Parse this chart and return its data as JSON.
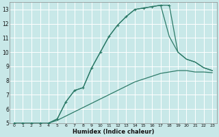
{
  "xlabel": "Humidex (Indice chaleur)",
  "bg_color": "#c8e8e8",
  "grid_color": "#ffffff",
  "line_color": "#2d7a68",
  "xlim": [
    -0.5,
    23.5
  ],
  "ylim": [
    5,
    13.5
  ],
  "xticks": [
    0,
    1,
    2,
    3,
    4,
    5,
    6,
    7,
    8,
    9,
    10,
    11,
    12,
    13,
    14,
    15,
    16,
    17,
    18,
    19,
    20,
    21,
    22,
    23
  ],
  "yticks": [
    5,
    6,
    7,
    8,
    9,
    10,
    11,
    12,
    13
  ],
  "series_marked_x": [
    0,
    1,
    2,
    3,
    4,
    5,
    6,
    7,
    8,
    9,
    10,
    11,
    12,
    13,
    14,
    15,
    16,
    17,
    18
  ],
  "series_marked_y": [
    5,
    5,
    5,
    5,
    5,
    5.3,
    6.5,
    7.3,
    7.5,
    8.9,
    10.0,
    11.1,
    11.9,
    12.5,
    13.0,
    13.1,
    13.2,
    13.3,
    13.3
  ],
  "series_upper_x": [
    0,
    1,
    2,
    3,
    4,
    5,
    6,
    7,
    8,
    9,
    10,
    11,
    12,
    13,
    14,
    15,
    16,
    17,
    18,
    19,
    20,
    21,
    22,
    23
  ],
  "series_upper_y": [
    5,
    5,
    5,
    5,
    5,
    5.2,
    5.5,
    5.8,
    6.1,
    6.4,
    6.7,
    7.0,
    7.3,
    7.6,
    7.9,
    8.1,
    8.3,
    8.5,
    8.6,
    8.7,
    8.7,
    8.6,
    8.6,
    8.55
  ],
  "series_lower_x": [
    0,
    1,
    2,
    3,
    4,
    5,
    6,
    7,
    8,
    9,
    10,
    11,
    12,
    13,
    14,
    15,
    16,
    17,
    18,
    19,
    20,
    21,
    22,
    23
  ],
  "series_lower_y": [
    5,
    5,
    5,
    5,
    5,
    5.3,
    6.5,
    7.3,
    7.5,
    8.9,
    10.0,
    11.1,
    11.9,
    12.5,
    13.0,
    13.1,
    13.2,
    13.3,
    11.1,
    10.0,
    9.5,
    9.3,
    8.9,
    8.7
  ],
  "series_right_x": [
    18,
    19,
    20,
    21,
    22,
    23
  ],
  "series_right_y": [
    13.3,
    10.0,
    9.5,
    9.3,
    8.9,
    8.7
  ]
}
